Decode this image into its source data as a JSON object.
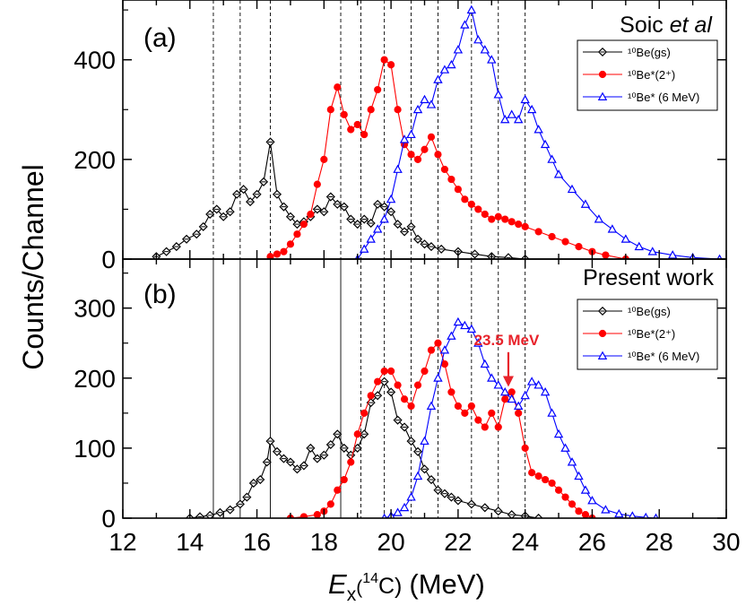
{
  "figure": {
    "xlabel_var": "E",
    "xlabel_sub": "x",
    "xlabel_paren": "(",
    "xlabel_iso": "14",
    "xlabel_elem": "C)",
    "xlabel_unit": "(MeV)",
    "ylabel": "Counts/Channel",
    "arrow_label": "23.5 MeV",
    "colors": {
      "gs": "#000000",
      "two_plus": "#ff0000",
      "six_mev": "#0000ff",
      "arrow": "#e8232b"
    }
  },
  "chart_data": [
    {
      "type": "line",
      "panel": "(a)",
      "title": "Soic ",
      "title_italic": "et al",
      "xlim": [
        12,
        30
      ],
      "ylim": [
        0,
        520
      ],
      "x_ticks": [
        12,
        14,
        16,
        18,
        20,
        22,
        24,
        26,
        28,
        30
      ],
      "y_ticks": [
        0,
        200,
        400
      ],
      "vlines": [
        14.7,
        15.5,
        16.4,
        18.5,
        19.1,
        19.8,
        20.6,
        21.4,
        22.4,
        23.2,
        24.0
      ],
      "vline_style": "dashed",
      "legend": [
        "¹⁰Be(gs)",
        "¹⁰Be*(2⁺)",
        "¹⁰Be* (6 MeV)"
      ],
      "series": [
        {
          "name": "¹⁰Be(gs)",
          "marker": "diamond",
          "x": [
            13.0,
            13.3,
            13.6,
            13.9,
            14.2,
            14.4,
            14.6,
            14.8,
            15.0,
            15.2,
            15.4,
            15.6,
            15.8,
            16.0,
            16.2,
            16.4,
            16.6,
            16.8,
            17.0,
            17.2,
            17.4,
            17.6,
            17.8,
            18.0,
            18.2,
            18.4,
            18.6,
            18.8,
            19.0,
            19.2,
            19.4,
            19.6,
            19.8,
            20.0,
            20.2,
            20.4,
            20.6,
            20.8,
            21.0,
            21.2,
            21.5,
            22.0,
            22.5,
            23.0,
            23.5,
            24.0
          ],
          "values": [
            5,
            15,
            25,
            40,
            50,
            65,
            90,
            100,
            85,
            95,
            130,
            140,
            115,
            130,
            155,
            235,
            130,
            105,
            85,
            70,
            75,
            85,
            100,
            95,
            125,
            110,
            105,
            80,
            70,
            80,
            72,
            110,
            105,
            95,
            70,
            55,
            65,
            40,
            30,
            25,
            20,
            15,
            10,
            5,
            3,
            0
          ]
        },
        {
          "name": "¹⁰Be*(2⁺)",
          "marker": "filled-circle",
          "x": [
            16.4,
            16.6,
            16.8,
            17.0,
            17.2,
            17.4,
            17.6,
            17.8,
            18.0,
            18.2,
            18.4,
            18.6,
            18.8,
            19.0,
            19.2,
            19.4,
            19.6,
            19.8,
            20.0,
            20.2,
            20.4,
            20.6,
            20.8,
            21.0,
            21.2,
            21.4,
            21.6,
            21.8,
            22.0,
            22.2,
            22.4,
            22.6,
            22.8,
            23.0,
            23.2,
            23.4,
            23.6,
            23.8,
            24.0,
            24.4,
            24.8,
            25.2,
            25.6,
            26.0,
            26.4,
            27.0
          ],
          "values": [
            5,
            10,
            15,
            30,
            50,
            70,
            90,
            150,
            200,
            300,
            345,
            290,
            260,
            270,
            250,
            300,
            340,
            400,
            390,
            300,
            230,
            210,
            200,
            220,
            245,
            210,
            180,
            160,
            140,
            120,
            110,
            100,
            90,
            80,
            85,
            80,
            75,
            70,
            65,
            55,
            45,
            35,
            25,
            15,
            8,
            0
          ]
        },
        {
          "name": "¹⁰Be* (6 MeV)",
          "marker": "open-triangle",
          "x": [
            19.0,
            19.2,
            19.4,
            19.6,
            19.8,
            20.0,
            20.2,
            20.4,
            20.6,
            20.8,
            21.0,
            21.2,
            21.4,
            21.6,
            21.8,
            22.0,
            22.2,
            22.4,
            22.6,
            22.8,
            23.0,
            23.2,
            23.4,
            23.6,
            23.8,
            24.0,
            24.2,
            24.4,
            24.6,
            24.8,
            25.0,
            25.4,
            25.8,
            26.2,
            26.6,
            27.0,
            27.4,
            27.8,
            28.4,
            29.0,
            29.8
          ],
          "values": [
            0,
            20,
            40,
            60,
            80,
            120,
            180,
            240,
            250,
            300,
            320,
            310,
            360,
            380,
            390,
            420,
            470,
            500,
            440,
            420,
            400,
            330,
            280,
            290,
            280,
            320,
            300,
            260,
            230,
            200,
            170,
            140,
            110,
            80,
            60,
            40,
            25,
            15,
            8,
            3,
            0
          ]
        }
      ]
    },
    {
      "type": "line",
      "panel": "(b)",
      "title": "Present work",
      "xlim": [
        12,
        30
      ],
      "ylim": [
        0,
        370
      ],
      "x_ticks": [
        12,
        14,
        16,
        18,
        20,
        22,
        24,
        26,
        28,
        30
      ],
      "y_ticks": [
        0,
        100,
        200,
        300
      ],
      "vlines_solid": [
        14.7,
        15.5,
        16.4,
        18.5
      ],
      "vlines_dashed": [
        19.1,
        19.8,
        20.6,
        21.4,
        22.4,
        23.2,
        24.0
      ],
      "legend": [
        "¹⁰Be(gs)",
        "¹⁰Be*(2⁺)",
        "¹⁰Be* (6 MeV)"
      ],
      "annotation": {
        "text": "23.5 MeV",
        "x": 23.5,
        "y": 185,
        "label_y": 255
      },
      "series": [
        {
          "name": "¹⁰Be(gs)",
          "marker": "diamond",
          "x": [
            14.0,
            14.3,
            14.6,
            14.9,
            15.2,
            15.5,
            15.7,
            15.9,
            16.1,
            16.3,
            16.4,
            16.6,
            16.8,
            17.0,
            17.2,
            17.4,
            17.6,
            17.8,
            18.0,
            18.2,
            18.4,
            18.6,
            18.8,
            19.0,
            19.2,
            19.4,
            19.6,
            19.8,
            20.0,
            20.2,
            20.4,
            20.6,
            20.8,
            21.0,
            21.2,
            21.4,
            21.6,
            21.8,
            22.0,
            22.4,
            22.8,
            23.2,
            23.6,
            24.0,
            24.4
          ],
          "values": [
            0,
            2,
            4,
            8,
            12,
            20,
            30,
            50,
            55,
            80,
            110,
            95,
            85,
            80,
            70,
            75,
            100,
            85,
            90,
            105,
            120,
            100,
            90,
            100,
            120,
            165,
            175,
            195,
            180,
            140,
            130,
            110,
            95,
            70,
            55,
            40,
            35,
            30,
            25,
            20,
            15,
            10,
            5,
            3,
            0
          ]
        },
        {
          "name": "¹⁰Be*(2⁺)",
          "marker": "filled-circle",
          "x": [
            17.0,
            17.4,
            17.8,
            18.0,
            18.2,
            18.4,
            18.6,
            18.8,
            19.0,
            19.2,
            19.4,
            19.6,
            19.8,
            20.0,
            20.2,
            20.4,
            20.6,
            20.8,
            21.0,
            21.2,
            21.4,
            21.6,
            21.8,
            22.0,
            22.2,
            22.4,
            22.6,
            22.8,
            23.0,
            23.2,
            23.4,
            23.6,
            23.8,
            24.0,
            24.2,
            24.4,
            24.6,
            24.8,
            25.0,
            25.2,
            25.4,
            25.6,
            25.8,
            26.0
          ],
          "values": [
            0,
            2,
            5,
            10,
            20,
            40,
            55,
            80,
            120,
            150,
            175,
            195,
            210,
            210,
            190,
            170,
            160,
            190,
            210,
            240,
            250,
            220,
            180,
            160,
            150,
            160,
            140,
            130,
            150,
            130,
            170,
            180,
            150,
            100,
            65,
            60,
            55,
            50,
            40,
            30,
            20,
            10,
            5,
            0
          ]
        },
        {
          "name": "¹⁰Be* (6 MeV)",
          "marker": "open-triangle",
          "x": [
            19.8,
            20.0,
            20.2,
            20.4,
            20.6,
            20.8,
            21.0,
            21.2,
            21.4,
            21.6,
            21.8,
            22.0,
            22.2,
            22.4,
            22.6,
            22.8,
            23.0,
            23.2,
            23.4,
            23.6,
            23.8,
            24.0,
            24.2,
            24.4,
            24.6,
            24.8,
            25.0,
            25.2,
            25.4,
            25.6,
            25.8,
            26.0,
            26.4,
            26.8,
            27.2,
            27.6,
            27.9
          ],
          "values": [
            0,
            3,
            8,
            15,
            30,
            60,
            110,
            160,
            200,
            240,
            260,
            280,
            275,
            270,
            250,
            220,
            200,
            190,
            180,
            170,
            160,
            175,
            195,
            190,
            180,
            150,
            120,
            100,
            80,
            60,
            40,
            25,
            12,
            6,
            3,
            1,
            0
          ]
        }
      ]
    }
  ]
}
